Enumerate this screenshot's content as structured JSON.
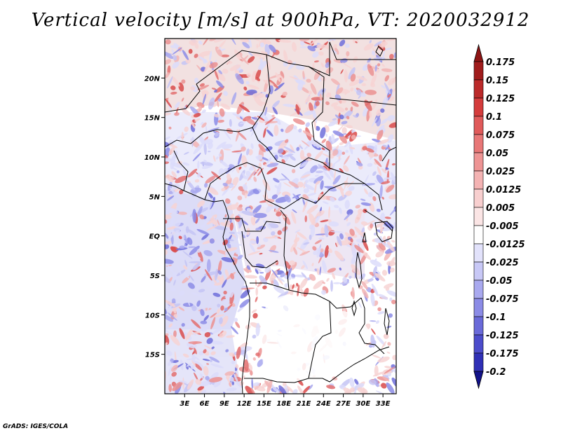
{
  "title": "Vertical velocity [m/s] at 900hPa, VT: 2020032912",
  "credit": "GrADS: IGES/COLA",
  "map": {
    "lon_range": [
      0,
      35
    ],
    "lat_range": [
      -20,
      25
    ],
    "lat_ticks": [
      {
        "value": 20,
        "label": "20N"
      },
      {
        "value": 15,
        "label": "15N"
      },
      {
        "value": 10,
        "label": "10N"
      },
      {
        "value": 5,
        "label": "5N"
      },
      {
        "value": 0,
        "label": "EQ"
      },
      {
        "value": -5,
        "label": "5S"
      },
      {
        "value": -10,
        "label": "10S"
      },
      {
        "value": -15,
        "label": "15S"
      }
    ],
    "lon_ticks": [
      {
        "value": 3,
        "label": "3E"
      },
      {
        "value": 6,
        "label": "6E"
      },
      {
        "value": 9,
        "label": "9E"
      },
      {
        "value": 12,
        "label": "12E"
      },
      {
        "value": 15,
        "label": "15E"
      },
      {
        "value": 18,
        "label": "18E"
      },
      {
        "value": 21,
        "label": "21E"
      },
      {
        "value": 24,
        "label": "24E"
      },
      {
        "value": 27,
        "label": "27E"
      },
      {
        "value": 30,
        "label": "30E"
      },
      {
        "value": 33,
        "label": "33E"
      }
    ]
  },
  "colorbar": {
    "levels": [
      {
        "label": "0.175",
        "color": "#a01c1c"
      },
      {
        "label": "0.15",
        "color": "#bb2a2a"
      },
      {
        "label": "0.125",
        "color": "#d43c3c"
      },
      {
        "label": "0.1",
        "color": "#e05a5a"
      },
      {
        "label": "0.075",
        "color": "#e87777"
      },
      {
        "label": "0.05",
        "color": "#ee9494"
      },
      {
        "label": "0.025",
        "color": "#f4b3b3"
      },
      {
        "label": "0.0125",
        "color": "#f8cfcf"
      },
      {
        "label": "0.005",
        "color": "#fbe5e5"
      },
      {
        "label": "-0.005",
        "color": "#ffffff"
      },
      {
        "label": "-0.0125",
        "color": "#e2e2fb"
      },
      {
        "label": "-0.025",
        "color": "#c8c8f6"
      },
      {
        "label": "-0.05",
        "color": "#a9a9ef"
      },
      {
        "label": "-0.075",
        "color": "#8b8be6"
      },
      {
        "label": "-0.1",
        "color": "#6a6ad9"
      },
      {
        "label": "-0.125",
        "color": "#4c4ccb"
      },
      {
        "label": "-0.175",
        "color": "#3030b6"
      },
      {
        "label": "-0.2",
        "color": "#1c1c9e"
      }
    ],
    "top_color": "#8e1414",
    "bottom_color": "#12128a"
  }
}
